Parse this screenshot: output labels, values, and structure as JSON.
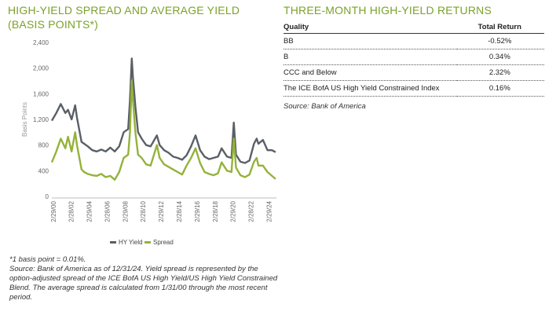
{
  "chart_title": "HIGH-YIELD SPREAD AND AVERAGE YIELD (BASIS POINTS*)",
  "returns_title": "THREE-MONTH HIGH-YIELD RETURNS",
  "colors": {
    "accent": "#7ba22a",
    "hy_yield": "#5a5f66",
    "spread": "#94b23a"
  },
  "chart_data": {
    "type": "line",
    "ylabel": "Basis Points",
    "xlabel": "",
    "ylim": [
      0,
      2400
    ],
    "yticks": [
      "0",
      "400",
      "800",
      "1,200",
      "1,600",
      "2,000",
      "2,400"
    ],
    "ytick_values": [
      0,
      400,
      800,
      1200,
      1600,
      2000,
      2400
    ],
    "xticks": [
      "2/29/00",
      "2/28/02",
      "2/29/04",
      "2/28/06",
      "2/29/08",
      "2/28/10",
      "2/29/12",
      "2/28/14",
      "2/29/16",
      "2/28/18",
      "2/29/20",
      "2/28/22",
      "2/29/24"
    ],
    "xtick_values": [
      2000.16,
      2002.16,
      2004.16,
      2006.16,
      2008.16,
      2010.16,
      2012.16,
      2014.16,
      2016.16,
      2018.16,
      2020.16,
      2022.16,
      2024.16
    ],
    "xlim": [
      2000.0,
      2025.0
    ],
    "legend": "bottom",
    "series": [
      {
        "name": "HY Yield",
        "x": [
          2000.0,
          2000.5,
          2001.0,
          2001.5,
          2001.8,
          2002.2,
          2002.6,
          2002.8,
          2003.0,
          2003.3,
          2003.6,
          2004.0,
          2004.5,
          2005.0,
          2005.5,
          2006.0,
          2006.5,
          2007.0,
          2007.5,
          2008.0,
          2008.5,
          2008.7,
          2008.9,
          2009.0,
          2009.3,
          2009.6,
          2010.0,
          2010.5,
          2011.0,
          2011.7,
          2012.0,
          2012.5,
          2013.0,
          2013.5,
          2014.0,
          2014.5,
          2015.0,
          2015.5,
          2016.0,
          2016.5,
          2017.0,
          2017.5,
          2018.0,
          2018.5,
          2018.9,
          2019.5,
          2020.0,
          2020.25,
          2020.5,
          2021.0,
          2021.5,
          2022.0,
          2022.5,
          2022.8,
          2023.0,
          2023.5,
          2024.0,
          2024.5,
          2024.9
        ],
        "y": [
          1180,
          1300,
          1440,
          1300,
          1350,
          1200,
          1420,
          1230,
          1080,
          850,
          820,
          780,
          720,
          700,
          730,
          700,
          760,
          700,
          780,
          1000,
          1050,
          1500,
          2150,
          1900,
          1400,
          1000,
          900,
          800,
          780,
          950,
          800,
          720,
          680,
          620,
          600,
          570,
          640,
          780,
          950,
          720,
          620,
          580,
          600,
          620,
          750,
          620,
          600,
          1150,
          650,
          540,
          520,
          560,
          820,
          900,
          820,
          880,
          720,
          720,
          690
        ]
      },
      {
        "name": "Spread",
        "x": [
          2000.0,
          2000.5,
          2001.0,
          2001.5,
          2001.8,
          2002.2,
          2002.6,
          2002.8,
          2003.0,
          2003.3,
          2003.6,
          2004.0,
          2004.5,
          2005.0,
          2005.5,
          2006.0,
          2006.5,
          2007.0,
          2007.5,
          2008.0,
          2008.5,
          2008.7,
          2008.9,
          2009.0,
          2009.3,
          2009.6,
          2010.0,
          2010.5,
          2011.0,
          2011.7,
          2012.0,
          2012.5,
          2013.0,
          2013.5,
          2014.0,
          2014.5,
          2015.0,
          2015.5,
          2016.0,
          2016.5,
          2017.0,
          2017.5,
          2018.0,
          2018.5,
          2018.9,
          2019.5,
          2020.0,
          2020.25,
          2020.5,
          2021.0,
          2021.5,
          2022.0,
          2022.5,
          2022.8,
          2023.0,
          2023.5,
          2024.0,
          2024.5,
          2024.9
        ],
        "y": [
          530,
          700,
          900,
          750,
          930,
          700,
          1000,
          800,
          650,
          420,
          380,
          350,
          330,
          320,
          350,
          300,
          320,
          260,
          380,
          600,
          650,
          1000,
          1800,
          1550,
          1000,
          650,
          600,
          500,
          480,
          800,
          600,
          500,
          460,
          420,
          380,
          340,
          480,
          600,
          750,
          520,
          380,
          350,
          330,
          360,
          530,
          400,
          380,
          900,
          450,
          330,
          300,
          340,
          540,
          600,
          480,
          480,
          380,
          320,
          270
        ]
      }
    ]
  },
  "returns_table": {
    "headers": [
      "Quality",
      "Total Return"
    ],
    "rows": [
      {
        "quality": "BB",
        "total_return": "-0.52%"
      },
      {
        "quality": "B",
        "total_return": "0.34%"
      },
      {
        "quality": "CCC and Below",
        "total_return": "2.32%"
      },
      {
        "quality": "The ICE BofA US High Yield Constrained Index",
        "total_return": "0.16%"
      }
    ]
  },
  "returns_source": "Source: Bank of America",
  "footnotes": {
    "basis_point": "*1 basis point = 0.01%.",
    "source": "Source: Bank of America as of 12/31/24. Yield spread is represented by the option-adjusted spread of the ICE BofA US High Yield/US High Yield Constrained Blend. The average spread is calculated from 1/31/00 through the most recent period."
  }
}
